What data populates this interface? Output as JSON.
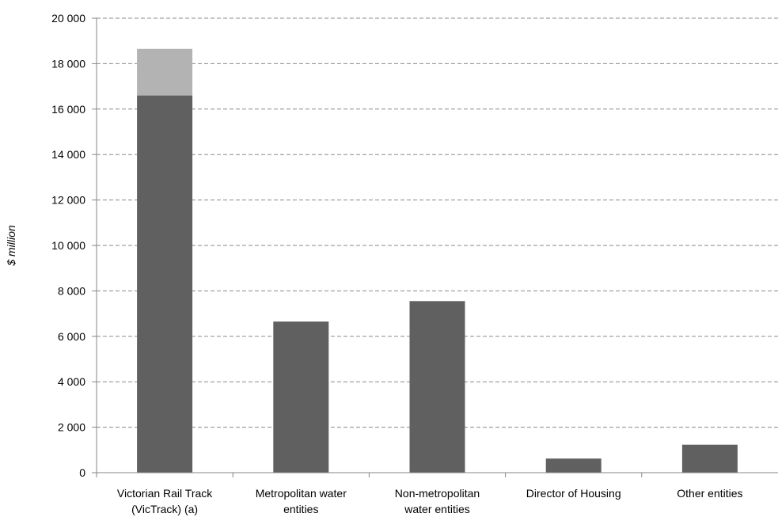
{
  "chart_data": {
    "type": "bar",
    "stacked": true,
    "title": "",
    "xlabel": "",
    "ylabel": "$ million",
    "ylim": [
      0,
      20000
    ],
    "yticks": [
      0,
      2000,
      4000,
      6000,
      8000,
      10000,
      12000,
      14000,
      16000,
      18000,
      20000
    ],
    "ytick_labels": [
      "0",
      "2 000",
      "4 000",
      "6 000",
      "8 000",
      "10 000",
      "12 000",
      "14 000",
      "16 000",
      "18 000",
      "20 000"
    ],
    "categories": [
      [
        "Victorian Rail Track",
        "(VicTrack) (a)"
      ],
      [
        "Metropolitan water",
        "entities"
      ],
      [
        "Non-metropolitan",
        "water entities"
      ],
      [
        "Director of Housing"
      ],
      [
        "Other entities"
      ]
    ],
    "series": [
      {
        "values": [
          16600,
          6650,
          7550,
          620,
          1230
        ],
        "color": "#606060"
      },
      {
        "values": [
          2050,
          0,
          0,
          0,
          0
        ],
        "color": "#b3b3b3"
      }
    ],
    "grid": true,
    "legend": "none"
  }
}
